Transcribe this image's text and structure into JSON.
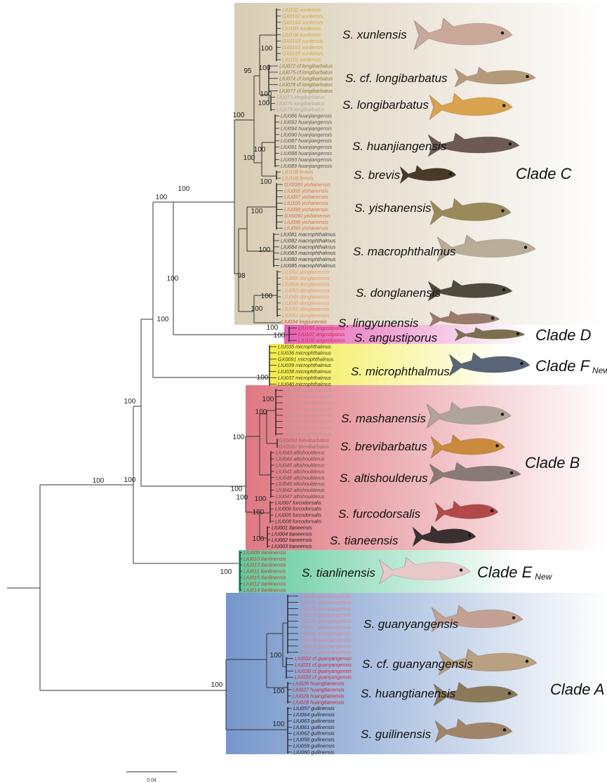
{
  "clades": [
    {
      "id": "C",
      "label": "Clade C",
      "new": "",
      "color": "#d9ccb4"
    },
    {
      "id": "D",
      "label": "Clade D",
      "new": "",
      "color": "#e35fb3"
    },
    {
      "id": "F",
      "label": "Clade F",
      "new": "New",
      "color": "#f3ec4a"
    },
    {
      "id": "B",
      "label": "Clade B",
      "new": "",
      "color": "#df7882"
    },
    {
      "id": "E",
      "label": "Clade E",
      "new": "New",
      "color": "#5fcb9c"
    },
    {
      "id": "A",
      "label": "Clade A",
      "new": "",
      "color": "#7597cb"
    }
  ],
  "groups": [
    {
      "species": "S. xunlensis",
      "color": "#d2a633",
      "fish": "#c9a89a",
      "tips": [
        "LIU102 xunlensis",
        "GX0162 xunlensis",
        "GX0164 xunlensis",
        "LIU103 xunlensis",
        "LIU104 xunlensis",
        "GX0163 xunlensis",
        "GX0161 xunlensis",
        "GX0165 xunlensis",
        "LIU101 xunlensis"
      ]
    },
    {
      "species": "S. cf. longibarbatus",
      "color": "#8a7726",
      "fish": "#b49a7a",
      "tips": [
        "LIU072 cf.longibarbatus",
        "LIU075 cf.longibarbatus",
        "LIU074 cf.longibarbatus",
        "LIU078 cf.longibarbatus",
        "LIU077 cf.longibarbatus"
      ]
    },
    {
      "species": "S. longibarbatus",
      "color": "#a9a59c",
      "fish": "#d9a24e",
      "tips": [
        "LIU073 longibarbatus",
        "LIU076 longibarbatus",
        "LIU079 longibarbatus"
      ]
    },
    {
      "species": "S. huanjiangensis",
      "color": "#555555",
      "fish": "#6e5a55",
      "tips": [
        "LIU086 huanjiangensis",
        "LIU092 huanjiangensis",
        "LIU094 huanjiangensis",
        "LIU090 huanjiangensis",
        "LIU087 huanjiangensis",
        "LIU091 huanjiangensis",
        "LIU088 huanjiangensis",
        "LIU093 huanjiangensis",
        "LIU089 huanjiangensis"
      ]
    },
    {
      "species": "S. brevis",
      "color": "#e08a4a",
      "fish": "#4a3a2a",
      "tips": [
        "LIU108 brevis",
        "LIU109 brevis"
      ]
    },
    {
      "species": "S. yishanensis",
      "color": "#d5713a",
      "fish": "#9a8a5a",
      "tips": [
        "GX0089 yishanensis",
        "LIU095 yishanensis",
        "LIU097 yishanensis",
        "LIU100 yishanensis",
        "LIU098 yishanensis",
        "GX0090 yishanensis",
        "LIU096 yishanensis",
        "LIU099 yishanensis"
      ]
    },
    {
      "species": "S. macrophthalmus",
      "color": "#3d3d3d",
      "fish": "#b9ad98",
      "tips": [
        "LIU081 macrophthalmus",
        "LIU082 macrophthalmus",
        "LIU084 macrophthalmus",
        "LIU083 macrophthalmus",
        "LIU080 macrophthalmus",
        "LIU085 macrophthalmus"
      ]
    },
    {
      "species": "S. donglanensis",
      "color": "#f0955a",
      "fish": "#4e4a3e",
      "tips": [
        "LIU052 donglanensis",
        "LIU056 donglanensis",
        "LIU054 donglanensis",
        "LIU053 donglanensis",
        "LIU049 donglanensis",
        "LIU050 donglanensis",
        "LIU055 donglanensis",
        "LIU051 donglanensis"
      ]
    },
    {
      "species": "S. lingyunensis",
      "color": "#c4502a",
      "fish": "#9a7a6a",
      "tips": [
        "LIU034 lingyunensis"
      ]
    },
    {
      "species": "S. angustiporus",
      "color": "#d9254a",
      "fish": "#7a7050",
      "tips": [
        "LIU105 angustiporus",
        "LIU107 angustiporus",
        "LIU106 angustiporus"
      ]
    },
    {
      "species": "S. microphthalmus",
      "color": "#3a3a10",
      "fish": "#5a6478",
      "tips": [
        "LIU035 microphthalmus",
        "LIU036 microphthalmus",
        "GX0091 microphthalmus",
        "LIU039 microphthalmus",
        "LIU038 microphthalmus",
        "LIU037 microphthalmus",
        "LIU040 microphthalmus"
      ]
    },
    {
      "species": "S. mashanensis",
      "color": "#b89a9a",
      "fish": "#b0a49a",
      "tips": [
        "LIU068 mashanensis",
        "LIU066 mashanensis",
        "GX0025 mashanensis",
        "LIU071 mashanensis",
        "LIU065 mashanensis",
        "LIU067 mashanensis",
        "LIU069 mashanensis",
        "LIU070 mashanensis"
      ]
    },
    {
      "species": "S. brevibarbatus",
      "color": "#8a6b6b",
      "fish": "#c98a3e",
      "tips": [
        "GX0053 brevibarbatus",
        "GX0082 brevibarbatus"
      ]
    },
    {
      "species": "S. altishoulderus",
      "color": "#5d4848",
      "fish": "#8a7a76",
      "tips": [
        "LIU043 altishoulderus",
        "LIU044 altishoulderus",
        "LIU045 altishoulderus",
        "LIU041 altishoulderus",
        "LIU048 altishoulderus",
        "LIU046 altishoulderus",
        "LIU042 altishoulderus",
        "LIU047 altishoulderus"
      ]
    },
    {
      "species": "S. furcodorsalis",
      "color": "#3c2a2a",
      "fish": "#b04a4a",
      "tips": [
        "LIU007 furcodorsalis",
        "LIU006 furcodorsalis",
        "LIU005 furcodorsalis",
        "LIU008 furcodorsalis"
      ]
    },
    {
      "species": "S. tianeensis",
      "color": "#1a1a1a",
      "fish": "#3a3030",
      "tips": [
        "LIU001 tianeensis",
        "LIU004 tianeensis",
        "LIU002 tianeensis",
        "LIU003 tianeensis"
      ]
    },
    {
      "species": "S. tianlinensis",
      "color": "#c8342f",
      "fish": "#e8c8c8",
      "tips": [
        "LIU009 tianlinensis",
        "LIU010 tianlinensis",
        "LIU013 tianlinensis",
        "LIU011 tianlinensis",
        "LIU015 tianlinensis",
        "LIU012 tianlinensis",
        "LIU014 tianlinensis"
      ]
    },
    {
      "species": "S. guanyangensis",
      "color": "#f07b82",
      "fish": "#c4a094",
      "tips": [
        "LIU024 guanyangensis",
        "LIU016 guanyangensis",
        "LIU022 guanyangensis",
        "LIU025 guanyangensis",
        "LIU019 guanyangensis",
        "LIU017 guanyangensis",
        "LIU021 guanyangensis",
        "LIU018 guanyangensis",
        "LIU023 guanyangensis",
        "LIU020 guanyangensis"
      ]
    },
    {
      "species": "S. cf. guanyangensis",
      "color": "#e5202e",
      "fish": "#b8a080",
      "tips": [
        "LIU032 cf.guanyangensis",
        "LIU031 cf.guanyangensis",
        "LIU030 cf.guanyangensis",
        "LIU033 cf.guanyangensis"
      ]
    },
    {
      "species": "S. huangtianensis",
      "color": "#cc1e2b",
      "fish": "#8a7a5a",
      "tips": [
        "LIU026 huangtianensis",
        "LIU027 huangtianensis",
        "LIU029 huangtianensis",
        "LIU028 huangtianensis"
      ]
    },
    {
      "species": "S. guilinensis",
      "color": "#2a1a1a",
      "fish": "#a08468",
      "tips": [
        "LIU057 guilinensis",
        "LIU064 guilinensis",
        "LIU063 guilinensis",
        "LIU061 guilinensis",
        "LIU062 guilinensis",
        "LIU058 guilinensis",
        "LIU059 guilinensis",
        "LIU060 guilinensis"
      ]
    }
  ],
  "supports": [
    "100",
    "100",
    "100",
    "100",
    "100",
    "100",
    "100",
    "95",
    "100",
    "100",
    "100",
    "100",
    "100",
    "100",
    "100",
    "98",
    "100",
    "100",
    "100",
    "100",
    "100",
    "100",
    "100",
    "100",
    "100",
    "100",
    "100",
    "100",
    "100",
    "100",
    "100",
    "100",
    "100",
    "100",
    "100",
    "100",
    "100"
  ],
  "scale_bar": {
    "label": "0.04"
  }
}
